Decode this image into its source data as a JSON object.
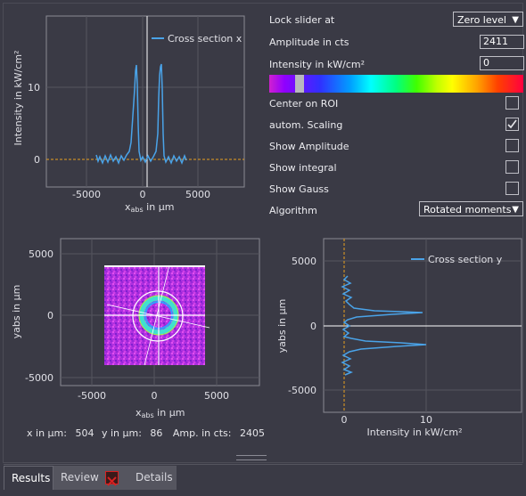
{
  "panel_top_left": {
    "legend": "Cross section x",
    "ylabel": "Intensity in kW/cm²",
    "xlabel_main": "x",
    "xlabel_sub": "abs",
    "xlabel_unit": " in µm",
    "xticks": [
      "-5000",
      "0",
      "5000"
    ],
    "yticks": [
      "0",
      "10"
    ]
  },
  "panel_bottom_left": {
    "xlabel_main": "x",
    "xlabel_sub": "abs",
    "xlabel_unit": " in µm",
    "ylabel": "yabs in µm",
    "xticks": [
      "-5000",
      "0",
      "5000"
    ],
    "yticks": [
      "5000",
      "0",
      "-5000"
    ]
  },
  "panel_bottom_right": {
    "legend": "Cross section y",
    "ylabel": "yabs in µm",
    "xlabel": "Intensity in kW/cm²",
    "xticks": [
      "0",
      "10"
    ],
    "yticks": [
      "5000",
      "0",
      "-5000"
    ]
  },
  "controls": {
    "lock_label": "Lock slider at",
    "lock_value": "Zero level",
    "amplitude_label": "Amplitude in cts",
    "amplitude_value": "2411",
    "intensity_label": "Intensity in kW/cm²",
    "intensity_value": "0",
    "center_label": "Center on ROI",
    "center_checked": false,
    "autoscale_label": "autom. Scaling",
    "autoscale_checked": true,
    "show_amp_label": "Show Amplitude",
    "show_amp_checked": false,
    "show_integral_label": "Show integral",
    "show_integral_checked": false,
    "show_gauss_label": "Show Gauss",
    "show_gauss_checked": false,
    "algorithm_label": "Algorithm",
    "algorithm_value": "Rotated moments",
    "colorbar_slider": 0.12
  },
  "readout": {
    "x_label": "x in µm:",
    "x_value": "504",
    "y_label": "y in µm:",
    "y_value": "86",
    "amp_label": "Amp. in cts:",
    "amp_value": "2405"
  },
  "tabs": [
    {
      "label": "Results",
      "active": true
    },
    {
      "label": "Review",
      "active": false
    },
    {
      "label": "Details",
      "active": false
    }
  ],
  "colors": {
    "accent_line": "#4aa3e8",
    "zero_line": "#e8a020",
    "close_red": "#d82020"
  },
  "icons": {
    "dropdown": "chevron-down-icon",
    "check": "check-icon",
    "review_close": "close-icon"
  }
}
